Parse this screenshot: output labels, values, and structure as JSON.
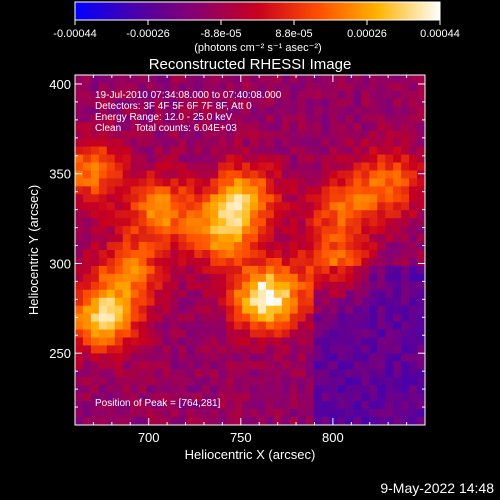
{
  "colorbar": {
    "tick_labels": [
      "-0.00044",
      "-0.00026",
      "-8.8e-05",
      "8.8e-05",
      "0.00026",
      "0.00044"
    ],
    "unit_label": "(photons cm⁻² s⁻¹ asec⁻²)"
  },
  "chart_data": {
    "type": "heatmap",
    "title": "Reconstructed RHESSI Image",
    "xlabel": "Heliocentric X (arcsec)",
    "ylabel": "Heliocentric Y (arcsec)",
    "xlim": [
      660,
      850
    ],
    "ylim": [
      210,
      405
    ],
    "x_ticks": [
      700,
      750,
      800
    ],
    "y_ticks": [
      250,
      300,
      350,
      400
    ],
    "value_range": [
      -0.00044,
      0.00044
    ],
    "colormap": [
      "#0000ff",
      "#4b00a8",
      "#880070",
      "#c8001e",
      "#ff5000",
      "#ffb400",
      "#ffffff"
    ],
    "peaks": [
      {
        "x": 764,
        "y": 281,
        "value": 0.00044
      },
      {
        "x": 675,
        "y": 270,
        "value": 0.00034
      },
      {
        "x": 740,
        "y": 318,
        "value": 0.00026
      },
      {
        "x": 752,
        "y": 338,
        "value": 0.00024
      },
      {
        "x": 706,
        "y": 330,
        "value": 0.00022
      },
      {
        "x": 668,
        "y": 352,
        "value": 0.0002
      },
      {
        "x": 690,
        "y": 296,
        "value": 0.00018
      },
      {
        "x": 830,
        "y": 345,
        "value": 0.00017
      },
      {
        "x": 800,
        "y": 298,
        "value": 0.00016
      },
      {
        "x": 805,
        "y": 330,
        "value": 0.00014
      }
    ],
    "annotations": [
      "19-Jul-2010 07:34:08.000 to 07:40:08.000",
      "Detectors: 3F 4F 5F 6F 7F 8F, Att 0",
      "Energy Range: 12.0 - 25.0 keV",
      "Clean     Total counts: 6.04E+03",
      "Position of Peak = [764,281]"
    ]
  },
  "footer": {
    "date": "9-May-2022 14:48"
  }
}
